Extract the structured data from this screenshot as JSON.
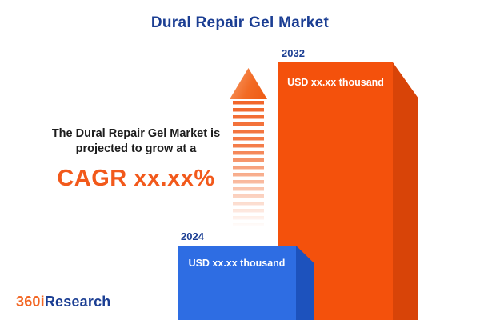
{
  "title": "Dural Repair Gel Market",
  "description": {
    "line1": "The Dural Repair Gel Market is",
    "line2": "projected to grow at a",
    "cagr": "CAGR xx.xx%"
  },
  "chart_data": {
    "type": "bar",
    "title": "Dural Repair Gel Market",
    "orientation": "vertical",
    "categories": [
      "2024",
      "2032"
    ],
    "values_text": [
      "USD xx.xx thousand",
      "USD xx.xx thousand"
    ],
    "annotation": "CAGR xx.xx%",
    "legend": false
  },
  "logo": {
    "part1": "360i",
    "part2": "Research"
  },
  "colors": {
    "navy": "#1b3e93",
    "accent_orange": "#f2591b",
    "bar_2032_front": "#f4510c",
    "bar_2032_side": "#d84408",
    "bar_2024_front": "#2e6de3",
    "bar_2024_side": "#1d52bd",
    "value_text": "#ffffff"
  }
}
